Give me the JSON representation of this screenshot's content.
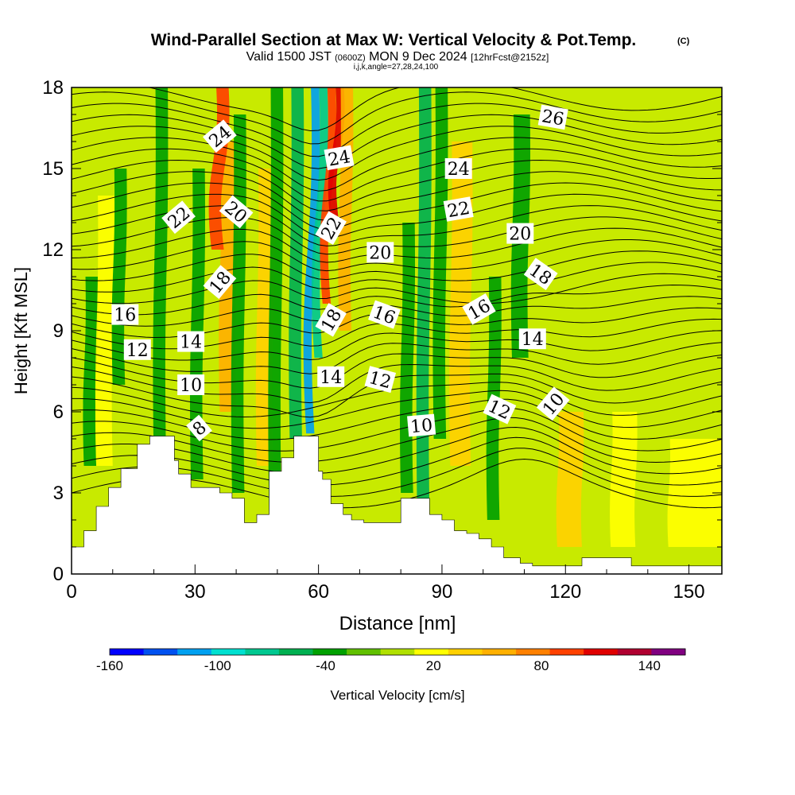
{
  "chart_data": {
    "type": "heatmap",
    "title": "Wind-Parallel Section at Max W: Vertical Velocity & Pot.Temp.",
    "title_mark": "(C)",
    "subtitle_pre": "Valid 1500 JST",
    "subtitle_utc": "(0600Z)",
    "subtitle_date": "MON 9 Dec 2024",
    "subtitle_fcst": "[12hrFcst@2152z]",
    "subtitle_idx": "i,j,k,angle=27,28,24,100",
    "xlabel": "Distance [nm]",
    "ylabel": "Height [Kft MSL]",
    "xlim": [
      0,
      158
    ],
    "ylim": [
      0,
      18
    ],
    "x_ticks": [
      0,
      30,
      60,
      90,
      120,
      150
    ],
    "y_ticks": [
      0,
      3,
      6,
      9,
      12,
      15,
      18
    ],
    "colorbar": {
      "label": "Vertical Velocity [cm/s]",
      "min": -160,
      "max": 160,
      "step": 20,
      "tick_labels": [
        "-160",
        "-100",
        "-40",
        "20",
        "80",
        "140"
      ],
      "tick_values": [
        -160,
        -100,
        -40,
        20,
        80,
        140
      ],
      "colors": [
        "#0000ff",
        "#0050f0",
        "#00a0f0",
        "#00e0d0",
        "#00c890",
        "#00b050",
        "#00a000",
        "#60c000",
        "#b0e000",
        "#ffff00",
        "#ffd000",
        "#ffb000",
        "#ff8000",
        "#ff4000",
        "#e00000",
        "#b00030",
        "#800080"
      ]
    },
    "theta_contour_labels": [
      {
        "text": "8",
        "x": 31,
        "y": 5.4,
        "angle": -40
      },
      {
        "text": "10",
        "x": 29,
        "y": 7.0,
        "angle": 0
      },
      {
        "text": "12",
        "x": 16,
        "y": 8.3,
        "angle": 0
      },
      {
        "text": "14",
        "x": 29,
        "y": 8.6,
        "angle": 0
      },
      {
        "text": "16",
        "x": 13,
        "y": 9.6,
        "angle": 0
      },
      {
        "text": "18",
        "x": 36,
        "y": 10.8,
        "angle": -50
      },
      {
        "text": "20",
        "x": 40,
        "y": 13.4,
        "angle": 40
      },
      {
        "text": "22",
        "x": 26,
        "y": 13.2,
        "angle": -40
      },
      {
        "text": "24",
        "x": 36,
        "y": 16.2,
        "angle": -40
      },
      {
        "text": "24",
        "x": 65,
        "y": 15.4,
        "angle": -10
      },
      {
        "text": "22",
        "x": 63,
        "y": 12.8,
        "angle": -60
      },
      {
        "text": "20",
        "x": 75,
        "y": 11.9,
        "angle": 0
      },
      {
        "text": "18",
        "x": 63,
        "y": 9.4,
        "angle": -60
      },
      {
        "text": "16",
        "x": 76,
        "y": 9.6,
        "angle": 20
      },
      {
        "text": "14",
        "x": 63,
        "y": 7.3,
        "angle": 0
      },
      {
        "text": "12",
        "x": 75,
        "y": 7.2,
        "angle": 15
      },
      {
        "text": "10",
        "x": 85,
        "y": 5.5,
        "angle": -5
      },
      {
        "text": "24",
        "x": 94,
        "y": 15.0,
        "angle": 0
      },
      {
        "text": "22",
        "x": 94,
        "y": 13.5,
        "angle": -10
      },
      {
        "text": "20",
        "x": 109,
        "y": 12.6,
        "angle": 0
      },
      {
        "text": "18",
        "x": 114,
        "y": 11.1,
        "angle": 35
      },
      {
        "text": "16",
        "x": 99,
        "y": 9.8,
        "angle": -30
      },
      {
        "text": "14",
        "x": 112,
        "y": 8.7,
        "angle": 0
      },
      {
        "text": "12",
        "x": 104,
        "y": 6.1,
        "angle": 25
      },
      {
        "text": "10",
        "x": 117,
        "y": 6.3,
        "angle": -50
      },
      {
        "text": "26",
        "x": 117,
        "y": 16.9,
        "angle": 10
      }
    ],
    "velocity_columns": [
      {
        "x": 3,
        "w": 3,
        "v": -40,
        "ybot": 4,
        "ytop": 11
      },
      {
        "x": 6,
        "w": 4,
        "v": 20,
        "ybot": 4,
        "ytop": 14
      },
      {
        "x": 10,
        "w": 3,
        "v": -40,
        "ybot": 7,
        "ytop": 15
      },
      {
        "x": 20,
        "w": 3,
        "v": -40,
        "ybot": 4,
        "ytop": 18
      },
      {
        "x": 29,
        "w": 3,
        "v": -40,
        "ybot": 3.5,
        "ytop": 15
      },
      {
        "x": 36,
        "w": 4,
        "v": 60,
        "ybot": 6,
        "ytop": 16
      },
      {
        "x": 34,
        "w": 3,
        "v": 100,
        "ybot": 12,
        "ytop": 18
      },
      {
        "x": 39,
        "w": 3,
        "v": -40,
        "ybot": 3,
        "ytop": 17
      },
      {
        "x": 45,
        "w": 4,
        "v": 40,
        "ybot": 4,
        "ytop": 15
      },
      {
        "x": 48,
        "w": 3,
        "v": -40,
        "ybot": 2,
        "ytop": 18
      },
      {
        "x": 53,
        "w": 3,
        "v": -60,
        "ybot": 5,
        "ytop": 18
      },
      {
        "x": 57,
        "w": 2,
        "v": -110,
        "ybot": 5.2,
        "ytop": 18
      },
      {
        "x": 59,
        "w": 2,
        "v": -80,
        "ybot": 8,
        "ytop": 18
      },
      {
        "x": 61,
        "w": 2,
        "v": 100,
        "ybot": 10,
        "ytop": 18
      },
      {
        "x": 63,
        "w": 2,
        "v": 130,
        "ybot": 13,
        "ytop": 18
      },
      {
        "x": 65,
        "w": 3,
        "v": 60,
        "ybot": 9,
        "ytop": 18
      },
      {
        "x": 80,
        "w": 3,
        "v": -40,
        "ybot": 3,
        "ytop": 13
      },
      {
        "x": 84,
        "w": 3,
        "v": -60,
        "ybot": 2,
        "ytop": 18
      },
      {
        "x": 88,
        "w": 3,
        "v": -40,
        "ybot": 5,
        "ytop": 18
      },
      {
        "x": 92,
        "w": 5,
        "v": 40,
        "ybot": 4,
        "ytop": 16
      },
      {
        "x": 101,
        "w": 3,
        "v": -40,
        "ybot": 2,
        "ytop": 11
      },
      {
        "x": 107,
        "w": 4,
        "v": -40,
        "ybot": 8,
        "ytop": 17
      },
      {
        "x": 118,
        "w": 6,
        "v": 40,
        "ybot": 1,
        "ytop": 6
      },
      {
        "x": 131,
        "w": 6,
        "v": 20,
        "ybot": 1,
        "ytop": 6
      },
      {
        "x": 145,
        "w": 13,
        "v": 20,
        "ybot": 1,
        "ytop": 5
      }
    ],
    "terrain": {
      "x": [
        0,
        3,
        3,
        6,
        6,
        9,
        9,
        12,
        12,
        16,
        16,
        19,
        19,
        23,
        23,
        25,
        25,
        26,
        26,
        29,
        29,
        33,
        33,
        36,
        36,
        39,
        39,
        42,
        42,
        45,
        45,
        48,
        48,
        51,
        51,
        54,
        54,
        57,
        57,
        60,
        60,
        61,
        61,
        63,
        63,
        66,
        66,
        68,
        68,
        71,
        71,
        74,
        74,
        77,
        77,
        80,
        80,
        84,
        84,
        87,
        87,
        90,
        90,
        93,
        93,
        96,
        96,
        99,
        99,
        102,
        102,
        105,
        105,
        109,
        109,
        112,
        112,
        115,
        115,
        118,
        118,
        124,
        124,
        130,
        130,
        133,
        133,
        136,
        136,
        142,
        142,
        150,
        150,
        158
      ],
      "y": [
        1,
        1,
        1.6,
        1.6,
        2.5,
        2.5,
        3.2,
        3.2,
        3.9,
        3.9,
        4.8,
        4.8,
        5.1,
        5.1,
        5.1,
        5.1,
        4.2,
        4.2,
        3.7,
        3.7,
        3.2,
        3.2,
        3.2,
        3.2,
        3.0,
        3.0,
        2.8,
        2.8,
        1.9,
        1.9,
        2.2,
        2.2,
        3.8,
        3.8,
        4.3,
        4.3,
        5.1,
        5.1,
        5.1,
        5.1,
        3.8,
        3.8,
        3.5,
        3.5,
        2.6,
        2.6,
        2.2,
        2.2,
        2.0,
        2.0,
        1.9,
        1.9,
        1.9,
        1.9,
        1.9,
        1.9,
        2.8,
        2.8,
        2.8,
        2.8,
        2.2,
        2.2,
        2.0,
        2.0,
        1.6,
        1.6,
        1.5,
        1.5,
        1.3,
        1.3,
        1.0,
        1.0,
        0.6,
        0.6,
        0.4,
        0.4,
        0.3,
        0.3,
        0.3,
        0.3,
        0.3,
        0.3,
        0.6,
        0.6,
        0.6,
        0.6,
        0.6,
        0.6,
        0.3,
        0.3,
        0.3,
        0.3,
        0.3,
        0.3
      ]
    }
  }
}
